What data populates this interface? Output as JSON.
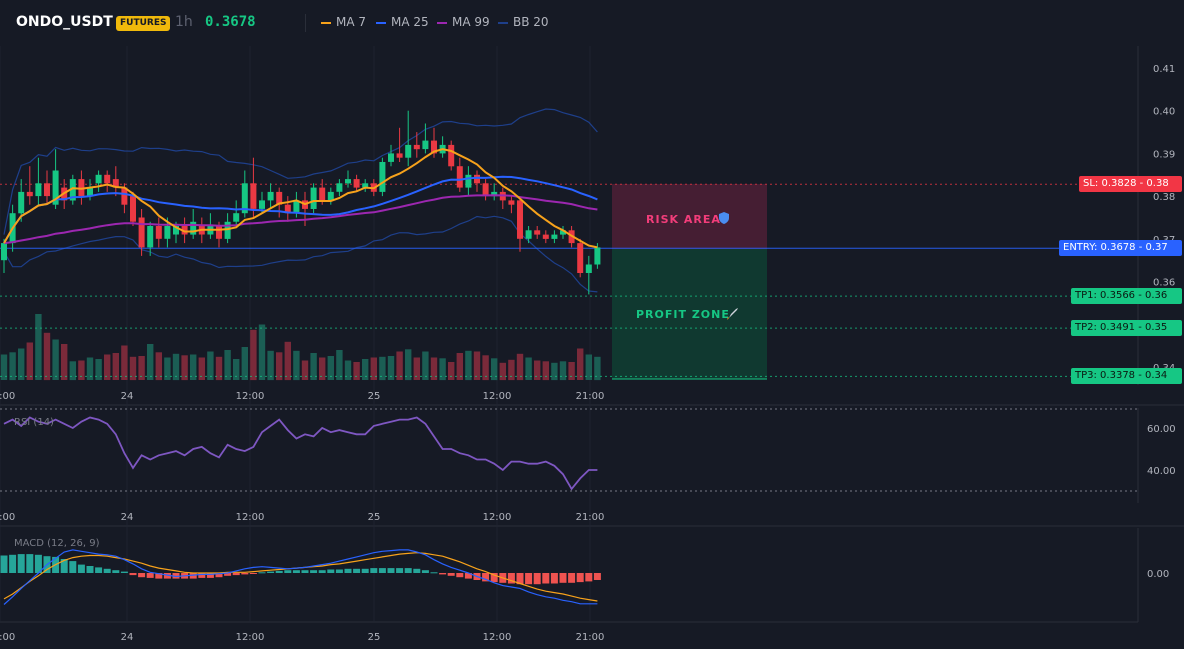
{
  "header": {
    "symbol": "ONDO_USDT",
    "badge": "FUTURES",
    "timeframe": "1h",
    "price": "0.3678",
    "legend": [
      {
        "label": "MA 7",
        "color": "#f7a21b"
      },
      {
        "label": "MA 25",
        "color": "#2962ff"
      },
      {
        "label": "MA 99",
        "color": "#9c27b0"
      },
      {
        "label": "BB 20",
        "color": "#1e3f8a"
      }
    ]
  },
  "zones": {
    "risk_label": "RISK AREA",
    "risk_icon": "shield-icon",
    "profit_label": "PROFIT ZONE",
    "profit_icon": "rocket-icon"
  },
  "levels": [
    {
      "label": "SL: 0.3828 - 0.38",
      "color": "#f23645"
    },
    {
      "label": "ENTRY: 0.3678 - 0.37",
      "color": "#2962ff"
    },
    {
      "label": "TP1: 0.3566 - 0.36",
      "color": "#16c784"
    },
    {
      "label": "TP2: 0.3491 - 0.35",
      "color": "#16c784"
    },
    {
      "label": "TP3: 0.3378 - 0.34",
      "color": "#16c784"
    }
  ],
  "time_axis": [
    "2:00",
    "24",
    "12:00",
    "25",
    "12:00",
    "21:00"
  ],
  "rsi": {
    "label": "RSI (14)"
  },
  "macd": {
    "label": "MACD (12, 26, 9)"
  },
  "chart_data": [
    {
      "type": "candlestick",
      "title": "ONDO_USDT 1h",
      "y_ticks": [
        "0.41",
        "0.40",
        "0.39",
        "0.38",
        "0.37",
        "0.36",
        "0.35",
        "0.34"
      ],
      "ylim": [
        0.339,
        0.412
      ],
      "entry": 0.3678,
      "stop_loss": 0.3828,
      "take_profits": [
        0.3566,
        0.3491,
        0.3378
      ],
      "candles": [
        {
          "o": 0.365,
          "c": 0.369,
          "h": 0.37,
          "l": 0.362
        },
        {
          "o": 0.369,
          "c": 0.376,
          "h": 0.378,
          "l": 0.367
        },
        {
          "o": 0.376,
          "c": 0.381,
          "h": 0.384,
          "l": 0.374
        },
        {
          "o": 0.381,
          "c": 0.38,
          "h": 0.387,
          "l": 0.378
        },
        {
          "o": 0.38,
          "c": 0.383,
          "h": 0.389,
          "l": 0.378
        },
        {
          "o": 0.383,
          "c": 0.38,
          "h": 0.386,
          "l": 0.378
        },
        {
          "o": 0.378,
          "c": 0.386,
          "h": 0.391,
          "l": 0.377
        },
        {
          "o": 0.382,
          "c": 0.379,
          "h": 0.384,
          "l": 0.377
        },
        {
          "o": 0.379,
          "c": 0.384,
          "h": 0.385,
          "l": 0.378
        },
        {
          "o": 0.384,
          "c": 0.38,
          "h": 0.386,
          "l": 0.378
        },
        {
          "o": 0.38,
          "c": 0.382,
          "h": 0.384,
          "l": 0.379
        },
        {
          "o": 0.383,
          "c": 0.385,
          "h": 0.386,
          "l": 0.381
        },
        {
          "o": 0.385,
          "c": 0.383,
          "h": 0.386,
          "l": 0.381
        },
        {
          "o": 0.384,
          "c": 0.382,
          "h": 0.387,
          "l": 0.38
        },
        {
          "o": 0.382,
          "c": 0.378,
          "h": 0.383,
          "l": 0.376
        },
        {
          "o": 0.38,
          "c": 0.374,
          "h": 0.381,
          "l": 0.373
        },
        {
          "o": 0.375,
          "c": 0.368,
          "h": 0.377,
          "l": 0.366
        },
        {
          "o": 0.368,
          "c": 0.373,
          "h": 0.374,
          "l": 0.366
        },
        {
          "o": 0.373,
          "c": 0.37,
          "h": 0.375,
          "l": 0.368
        },
        {
          "o": 0.37,
          "c": 0.373,
          "h": 0.375,
          "l": 0.368
        },
        {
          "o": 0.371,
          "c": 0.373,
          "h": 0.374,
          "l": 0.369
        },
        {
          "o": 0.373,
          "c": 0.371,
          "h": 0.375,
          "l": 0.369
        },
        {
          "o": 0.371,
          "c": 0.374,
          "h": 0.377,
          "l": 0.37
        },
        {
          "o": 0.373,
          "c": 0.371,
          "h": 0.375,
          "l": 0.369
        },
        {
          "o": 0.371,
          "c": 0.373,
          "h": 0.376,
          "l": 0.37
        },
        {
          "o": 0.373,
          "c": 0.37,
          "h": 0.374,
          "l": 0.368
        },
        {
          "o": 0.37,
          "c": 0.374,
          "h": 0.376,
          "l": 0.369
        },
        {
          "o": 0.374,
          "c": 0.376,
          "h": 0.379,
          "l": 0.373
        },
        {
          "o": 0.376,
          "c": 0.383,
          "h": 0.386,
          "l": 0.375
        },
        {
          "o": 0.383,
          "c": 0.377,
          "h": 0.389,
          "l": 0.375
        },
        {
          "o": 0.377,
          "c": 0.379,
          "h": 0.381,
          "l": 0.376
        },
        {
          "o": 0.379,
          "c": 0.381,
          "h": 0.383,
          "l": 0.377
        },
        {
          "o": 0.381,
          "c": 0.378,
          "h": 0.382,
          "l": 0.375
        },
        {
          "o": 0.378,
          "c": 0.376,
          "h": 0.38,
          "l": 0.374
        },
        {
          "o": 0.376,
          "c": 0.379,
          "h": 0.381,
          "l": 0.375
        },
        {
          "o": 0.379,
          "c": 0.377,
          "h": 0.381,
          "l": 0.373
        },
        {
          "o": 0.377,
          "c": 0.382,
          "h": 0.383,
          "l": 0.376
        },
        {
          "o": 0.382,
          "c": 0.379,
          "h": 0.384,
          "l": 0.378
        },
        {
          "o": 0.379,
          "c": 0.381,
          "h": 0.382,
          "l": 0.378
        },
        {
          "o": 0.381,
          "c": 0.383,
          "h": 0.384,
          "l": 0.38
        },
        {
          "o": 0.383,
          "c": 0.384,
          "h": 0.386,
          "l": 0.382
        },
        {
          "o": 0.384,
          "c": 0.382,
          "h": 0.385,
          "l": 0.381
        },
        {
          "o": 0.382,
          "c": 0.383,
          "h": 0.384,
          "l": 0.381
        },
        {
          "o": 0.383,
          "c": 0.381,
          "h": 0.384,
          "l": 0.38
        },
        {
          "o": 0.381,
          "c": 0.388,
          "h": 0.389,
          "l": 0.38
        },
        {
          "o": 0.388,
          "c": 0.39,
          "h": 0.392,
          "l": 0.387
        },
        {
          "o": 0.39,
          "c": 0.389,
          "h": 0.396,
          "l": 0.388
        },
        {
          "o": 0.389,
          "c": 0.392,
          "h": 0.4,
          "l": 0.387
        },
        {
          "o": 0.392,
          "c": 0.391,
          "h": 0.395,
          "l": 0.389
        },
        {
          "o": 0.391,
          "c": 0.393,
          "h": 0.397,
          "l": 0.39
        },
        {
          "o": 0.393,
          "c": 0.39,
          "h": 0.396,
          "l": 0.389
        },
        {
          "o": 0.39,
          "c": 0.392,
          "h": 0.394,
          "l": 0.389
        },
        {
          "o": 0.392,
          "c": 0.387,
          "h": 0.393,
          "l": 0.386
        },
        {
          "o": 0.387,
          "c": 0.382,
          "h": 0.389,
          "l": 0.381
        },
        {
          "o": 0.382,
          "c": 0.385,
          "h": 0.387,
          "l": 0.38
        },
        {
          "o": 0.385,
          "c": 0.383,
          "h": 0.386,
          "l": 0.381
        },
        {
          "o": 0.383,
          "c": 0.38,
          "h": 0.384,
          "l": 0.379
        },
        {
          "o": 0.38,
          "c": 0.381,
          "h": 0.383,
          "l": 0.379
        },
        {
          "o": 0.381,
          "c": 0.379,
          "h": 0.382,
          "l": 0.377
        },
        {
          "o": 0.379,
          "c": 0.378,
          "h": 0.38,
          "l": 0.376
        },
        {
          "o": 0.379,
          "c": 0.37,
          "h": 0.38,
          "l": 0.367
        },
        {
          "o": 0.37,
          "c": 0.372,
          "h": 0.373,
          "l": 0.369
        },
        {
          "o": 0.372,
          "c": 0.371,
          "h": 0.373,
          "l": 0.37
        },
        {
          "o": 0.371,
          "c": 0.37,
          "h": 0.372,
          "l": 0.369
        },
        {
          "o": 0.37,
          "c": 0.371,
          "h": 0.372,
          "l": 0.369
        },
        {
          "o": 0.371,
          "c": 0.372,
          "h": 0.373,
          "l": 0.37
        },
        {
          "o": 0.372,
          "c": 0.369,
          "h": 0.373,
          "l": 0.368
        },
        {
          "o": 0.369,
          "c": 0.362,
          "h": 0.37,
          "l": 0.361
        },
        {
          "o": 0.362,
          "c": 0.364,
          "h": 0.366,
          "l": 0.357
        },
        {
          "o": 0.364,
          "c": 0.368,
          "h": 0.369,
          "l": 0.363
        }
      ],
      "volumes": [
        34,
        37,
        42,
        50,
        88,
        63,
        54,
        48,
        25,
        26,
        30,
        28,
        34,
        36,
        46,
        31,
        32,
        48,
        37,
        30,
        35,
        33,
        34,
        30,
        38,
        31,
        40,
        28,
        44,
        67,
        74,
        39,
        37,
        51,
        39,
        26,
        36,
        30,
        32,
        40,
        26,
        24,
        28,
        30,
        31,
        32,
        38,
        41,
        30,
        38,
        30,
        29,
        24,
        36,
        39,
        38,
        33,
        29,
        23,
        27,
        35,
        30,
        26,
        25,
        23,
        25,
        24,
        42,
        34,
        31
      ]
    },
    {
      "type": "line",
      "title": "RSI (14)",
      "y_ticks": [
        "60.00",
        "40.00"
      ],
      "ylim": [
        30,
        70
      ],
      "values": [
        62,
        64,
        61,
        65,
        63,
        62,
        64,
        62,
        60,
        63,
        65,
        64,
        62,
        57,
        48,
        41,
        47,
        45,
        47,
        48,
        49,
        47,
        50,
        51,
        48,
        46,
        52,
        50,
        49,
        51,
        58,
        61,
        64,
        59,
        55,
        57,
        56,
        60,
        58,
        59,
        58,
        57,
        57,
        61,
        62,
        63,
        64,
        64,
        65,
        62,
        56,
        50,
        50,
        48,
        47,
        45,
        45,
        43,
        40,
        44,
        44,
        43,
        43,
        44,
        42,
        38,
        31,
        36,
        40,
        40
      ]
    },
    {
      "type": "macd",
      "title": "MACD (12, 26, 9)",
      "y_ticks": [
        "0.00"
      ],
      "ylim": [
        -0.006,
        0.0052
      ],
      "macd": [
        -0.0045,
        -0.0034,
        -0.0022,
        -0.0011,
        0.0,
        0.0012,
        0.0021,
        0.003,
        0.0033,
        0.0031,
        0.0029,
        0.0027,
        0.0026,
        0.0024,
        0.0019,
        0.0013,
        0.0006,
        0.0001,
        -0.0001,
        -0.0003,
        -0.0005,
        -0.0004,
        -0.0003,
        -0.0002,
        -0.0002,
        -0.0001,
        0.0,
        0.0003,
        0.0006,
        0.0008,
        0.0009,
        0.0008,
        0.0007,
        0.0006,
        0.0007,
        0.0008,
        0.001,
        0.0012,
        0.0014,
        0.0017,
        0.002,
        0.0023,
        0.0026,
        0.0029,
        0.0031,
        0.0032,
        0.0033,
        0.0033,
        0.003,
        0.0026,
        0.0019,
        0.0013,
        0.0008,
        0.0004,
        0.0,
        -0.0005,
        -0.0009,
        -0.0014,
        -0.0018,
        -0.002,
        -0.0022,
        -0.0027,
        -0.0031,
        -0.0034,
        -0.0036,
        -0.0039,
        -0.0041,
        -0.0044,
        -0.0044,
        -0.0044
      ],
      "signal": [
        -0.0037,
        -0.003,
        -0.0021,
        -0.0012,
        -0.0004,
        0.0005,
        0.0012,
        0.0018,
        0.0022,
        0.0024,
        0.0025,
        0.0025,
        0.0024,
        0.0022,
        0.002,
        0.0017,
        0.0014,
        0.001,
        0.0007,
        0.0005,
        0.0003,
        0.0001,
        0.0,
        0.0,
        0.0,
        0.0,
        0.0001,
        0.0001,
        0.0001,
        0.0002,
        0.0003,
        0.0004,
        0.0005,
        0.0006,
        0.0007,
        0.0008,
        0.0009,
        0.001,
        0.0012,
        0.0013,
        0.0015,
        0.0017,
        0.0019,
        0.0021,
        0.0023,
        0.0025,
        0.0027,
        0.0028,
        0.0029,
        0.0028,
        0.0026,
        0.0024,
        0.002,
        0.0016,
        0.0011,
        0.0006,
        0.0002,
        -0.0003,
        -0.0007,
        -0.0011,
        -0.0015,
        -0.0019,
        -0.0023,
        -0.0026,
        -0.0028,
        -0.003,
        -0.0033,
        -0.0036,
        -0.0038,
        -0.004
      ],
      "histogram": [
        0.0025,
        0.0026,
        0.0027,
        0.0027,
        0.0026,
        0.0024,
        0.0023,
        0.002,
        0.0017,
        0.0012,
        0.001,
        0.0008,
        0.0006,
        0.0004,
        0.0002,
        -0.0003,
        -0.0006,
        -0.0007,
        -0.0008,
        -0.0008,
        -0.0008,
        -0.0008,
        -0.0008,
        -0.0007,
        -0.0007,
        -0.0006,
        -0.0004,
        -0.0003,
        -0.0002,
        -0.0001,
        0.0001,
        0.0002,
        0.0003,
        0.0004,
        0.0004,
        0.0004,
        0.0004,
        0.0004,
        0.0005,
        0.0005,
        0.0006,
        0.0006,
        0.0006,
        0.0007,
        0.0007,
        0.0007,
        0.0007,
        0.0007,
        0.0006,
        0.0004,
        0.0001,
        -0.0002,
        -0.0004,
        -0.0006,
        -0.0008,
        -0.001,
        -0.0012,
        -0.0013,
        -0.0014,
        -0.0015,
        -0.0016,
        -0.0016,
        -0.0016,
        -0.0015,
        -0.0015,
        -0.0014,
        -0.0014,
        -0.0013,
        -0.0012,
        -0.001
      ]
    }
  ]
}
